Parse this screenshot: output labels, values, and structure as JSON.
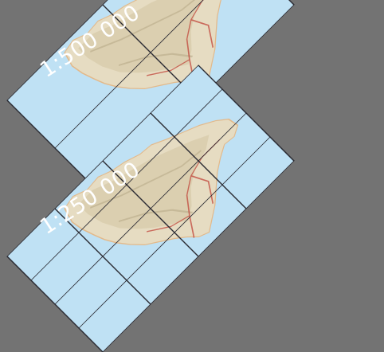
{
  "colors": {
    "background": "#737373",
    "sea": "#bfe1f4",
    "land": "#e6dcc2",
    "land_relief": "#d2c4a3",
    "coast": "#e3b98a",
    "grid_line": "#2b2b33",
    "roads": "#c0443a",
    "label": "#ffffff"
  },
  "tile_levels": [
    {
      "id": "upper",
      "scale_label": "1:500 000",
      "grid_divisions": 2
    },
    {
      "id": "lower",
      "scale_label": "1:250 000",
      "grid_divisions": 4
    }
  ]
}
